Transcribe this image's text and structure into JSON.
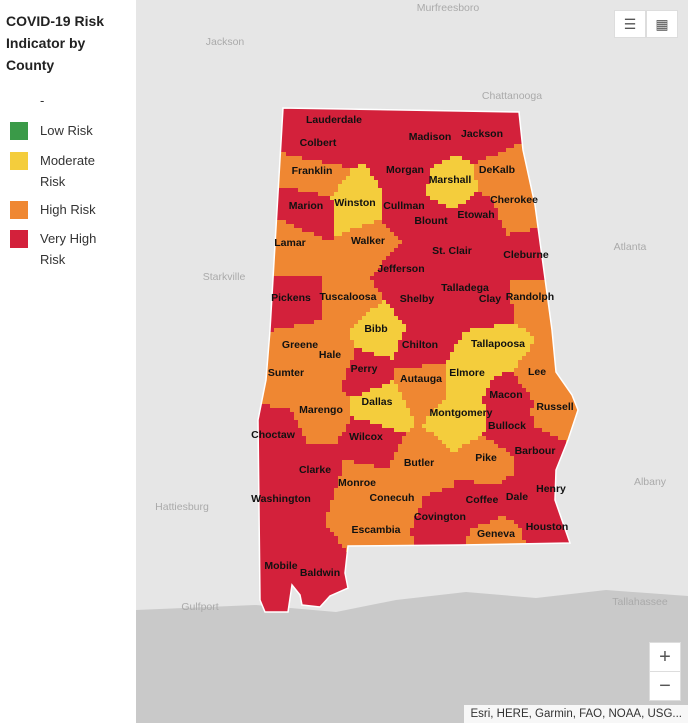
{
  "legend": {
    "title": "COVID-19 Risk Indicator by County",
    "items": [
      {
        "label": "-"
      },
      {
        "label": "Low Risk",
        "color": "#3a9a48"
      },
      {
        "label": "Moderate Risk",
        "color": "#f4cd3c",
        "counties": [
          "Marshall",
          "Winston",
          "Bibb",
          "Tallapoosa",
          "Elmore",
          "Dallas",
          "Montgomery"
        ]
      },
      {
        "label": "High Risk",
        "color": "#ef8732",
        "counties": [
          "Franklin",
          "DeKalb",
          "Cherokee",
          "Lamar",
          "Walker",
          "Tuscaloosa",
          "Randolph",
          "Greene",
          "Hale",
          "Sumter",
          "Autauga",
          "Lee",
          "Russell",
          "Marengo",
          "Butler",
          "Pike",
          "Monroe",
          "Conecuh",
          "Escambia",
          "Geneva"
        ]
      },
      {
        "label": "Very High Risk",
        "color": "#d3213b",
        "counties": [
          "Lauderdale",
          "Colbert",
          "Madison",
          "Jackson",
          "Morgan",
          "Marion",
          "Cullman",
          "Etowah",
          "Blount",
          "St. Clair",
          "Cleburne",
          "Jefferson",
          "Talladega",
          "Pickens",
          "Shelby",
          "Clay",
          "Chilton",
          "Perry",
          "Macon",
          "Bullock",
          "Choctaw",
          "Wilcox",
          "Barbour",
          "Clarke",
          "Henry",
          "Coffee",
          "Dale",
          "Washington",
          "Covington",
          "Houston",
          "Mobile",
          "Baldwin"
        ]
      }
    ]
  },
  "basemap_labels": [
    "Murfreesboro",
    "Jackson",
    "Chattanooga",
    "Atlanta",
    "Starkville",
    "Hattiesburg",
    "Albany",
    "Tallahassee",
    "Gulfport"
  ],
  "zoom": {
    "in": "+",
    "out": "−"
  },
  "attribution": "Esri, HERE, Garmin, FAO, NOAA, USG..."
}
